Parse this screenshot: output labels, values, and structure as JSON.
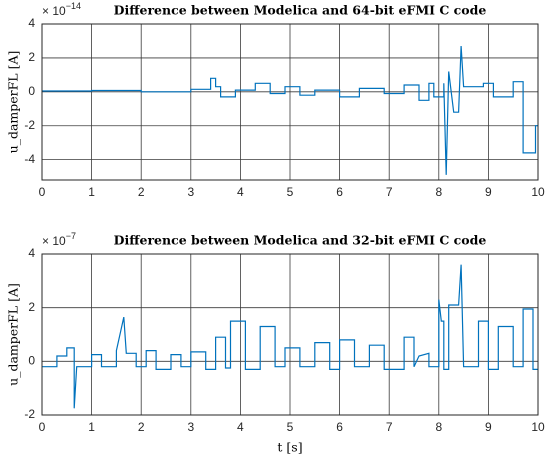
{
  "chart_data": [
    {
      "type": "line",
      "title": "Difference between Modelica and 64-bit eFMI C code",
      "y_label": "u_damperFL [A]",
      "exponent_base": "× 10",
      "exponent": "−14",
      "xlim": [
        0,
        10
      ],
      "xticks": [
        0,
        1,
        2,
        3,
        4,
        5,
        6,
        7,
        8,
        9,
        10
      ],
      "ylim": [
        -5.2,
        4
      ],
      "yticks": [
        -4,
        -2,
        0,
        2,
        4
      ],
      "grid": true,
      "series": [
        {
          "color": "#0072bd",
          "x": [
            0,
            1,
            1,
            2,
            2,
            3,
            3,
            3.4,
            3.4,
            3.5,
            3.5,
            3.6,
            3.6,
            3.9,
            3.9,
            4.3,
            4.3,
            4.6,
            4.6,
            4.9,
            4.9,
            5.2,
            5.2,
            5.5,
            5.5,
            6.0,
            6.0,
            6.4,
            6.4,
            6.9,
            6.9,
            7.3,
            7.3,
            7.6,
            7.6,
            7.8,
            7.8,
            7.9,
            7.9,
            8.1,
            8.1,
            8.15,
            8.2,
            8.3,
            8.4,
            8.45,
            8.5,
            8.9,
            8.9,
            9.1,
            9.1,
            9.5,
            9.5,
            9.7,
            9.7,
            9.95,
            9.95,
            10
          ],
          "values": [
            0.05,
            0.05,
            0.08,
            0.08,
            0,
            0,
            0.15,
            0.15,
            0.8,
            0.8,
            0.3,
            0.3,
            -0.3,
            -0.3,
            0.1,
            0.1,
            0.5,
            0.5,
            -0.1,
            -0.1,
            0.3,
            0.3,
            -0.2,
            -0.2,
            0.1,
            0.1,
            -0.3,
            -0.3,
            0.2,
            0.2,
            -0.1,
            -0.1,
            0.4,
            0.4,
            -0.5,
            -0.5,
            0.5,
            0.5,
            -0.3,
            -0.3,
            0.5,
            -4.9,
            1.2,
            -1.2,
            -1.2,
            2.7,
            0.3,
            0.3,
            0.5,
            0.5,
            -0.3,
            -0.3,
            0.6,
            0.6,
            -3.6,
            -3.6,
            -2.0,
            -2.0
          ]
        }
      ]
    },
    {
      "type": "line",
      "title": "Difference between Modelica and 32-bit eFMI C code",
      "y_label": "u_damperFL [A]",
      "x_label": "t [s]",
      "exponent_base": "× 10",
      "exponent": "−7",
      "xlim": [
        0,
        10
      ],
      "xticks": [
        0,
        1,
        2,
        3,
        4,
        5,
        6,
        7,
        8,
        9,
        10
      ],
      "ylim": [
        -2,
        4
      ],
      "yticks": [
        -2,
        0,
        2,
        4
      ],
      "grid": true,
      "series": [
        {
          "color": "#0072bd",
          "x": [
            0,
            0.3,
            0.3,
            0.5,
            0.5,
            0.65,
            0.65,
            0.7,
            1.0,
            1.0,
            1.2,
            1.2,
            1.5,
            1.5,
            1.65,
            1.7,
            1.9,
            1.9,
            2.1,
            2.1,
            2.3,
            2.3,
            2.6,
            2.6,
            2.8,
            2.8,
            3.0,
            3.0,
            3.3,
            3.3,
            3.5,
            3.5,
            3.7,
            3.7,
            3.8,
            3.8,
            4.1,
            4.1,
            4.4,
            4.4,
            4.7,
            4.7,
            4.9,
            4.9,
            5.2,
            5.2,
            5.5,
            5.5,
            5.8,
            5.8,
            6.0,
            6.0,
            6.3,
            6.3,
            6.6,
            6.6,
            6.9,
            6.9,
            7.3,
            7.3,
            7.5,
            7.5,
            7.6,
            7.8,
            7.8,
            8.0,
            8.0,
            8.05,
            8.1,
            8.1,
            8.2,
            8.2,
            8.4,
            8.45,
            8.5,
            8.8,
            8.8,
            9.0,
            9.0,
            9.2,
            9.2,
            9.5,
            9.5,
            9.7,
            9.7,
            9.9,
            9.9,
            10
          ],
          "values": [
            -0.2,
            -0.2,
            0.2,
            0.2,
            0.5,
            0.5,
            -1.75,
            -0.2,
            -0.2,
            0.25,
            0.25,
            -0.2,
            -0.2,
            0.4,
            1.65,
            0.3,
            0.3,
            -0.2,
            -0.2,
            0.4,
            0.4,
            -0.3,
            -0.3,
            0.25,
            0.25,
            -0.2,
            -0.2,
            0.35,
            0.35,
            -0.3,
            -0.3,
            0.9,
            0.9,
            -0.25,
            -0.25,
            1.5,
            1.5,
            -0.3,
            -0.3,
            1.3,
            1.3,
            -0.2,
            -0.2,
            0.5,
            0.5,
            -0.2,
            -0.2,
            0.7,
            0.7,
            -0.3,
            -0.3,
            0.8,
            0.8,
            -0.2,
            -0.2,
            0.6,
            0.6,
            -0.3,
            -0.3,
            0.9,
            0.9,
            -0.2,
            0.2,
            0.3,
            -0.2,
            -0.2,
            2.3,
            1.5,
            1.5,
            -0.3,
            -0.3,
            2.1,
            2.1,
            3.6,
            -0.2,
            -0.2,
            1.5,
            1.5,
            -0.3,
            -0.3,
            1.3,
            1.3,
            -0.2,
            -0.2,
            1.95,
            1.95,
            -0.3,
            -0.3
          ]
        }
      ]
    }
  ]
}
